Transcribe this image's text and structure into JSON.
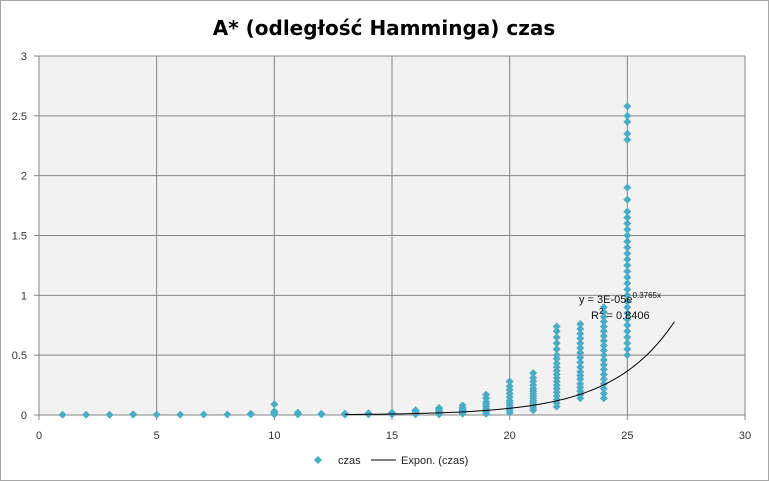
{
  "chart_data": {
    "type": "scatter",
    "title": "A* (odległość Hamminga) czas",
    "xlabel": "",
    "ylabel": "",
    "xlim": [
      0,
      30
    ],
    "ylim": [
      0,
      3
    ],
    "x_ticks": [
      0,
      5,
      10,
      15,
      20,
      25,
      30
    ],
    "y_ticks": [
      0,
      0.5,
      1,
      1.5,
      2,
      2.5,
      3
    ],
    "x_tick_labels": [
      "0",
      "5",
      "10",
      "15",
      "20",
      "25",
      "30"
    ],
    "y_tick_labels": [
      "0",
      "0.5",
      "1",
      "1.5",
      "2",
      "2.5",
      "3"
    ],
    "grid": true,
    "legend_position": "bottom",
    "colors": {
      "marker": "#4bacc6",
      "trendline": "#000000",
      "plot_area": "#f2f2f2",
      "grid": "#868686"
    },
    "series": [
      {
        "name": "czas",
        "points": [
          [
            1,
            0.002
          ],
          [
            2,
            0.002
          ],
          [
            3,
            0.002
          ],
          [
            4,
            0.003
          ],
          [
            4,
            0.006
          ],
          [
            5,
            0.003
          ],
          [
            6,
            0.003
          ],
          [
            7,
            0.004
          ],
          [
            8,
            0.004
          ],
          [
            9,
            0.005
          ],
          [
            9,
            0.01
          ],
          [
            10,
            0.005
          ],
          [
            10,
            0.01
          ],
          [
            10,
            0.02
          ],
          [
            10,
            0.03
          ],
          [
            10,
            0.09
          ],
          [
            11,
            0.005
          ],
          [
            11,
            0.01
          ],
          [
            11,
            0.02
          ],
          [
            12,
            0.005
          ],
          [
            12,
            0.01
          ],
          [
            13,
            0.003
          ],
          [
            13,
            0.008
          ],
          [
            13,
            0.012
          ],
          [
            14,
            0.005
          ],
          [
            14,
            0.01
          ],
          [
            14,
            0.015
          ],
          [
            15,
            0.005
          ],
          [
            15,
            0.01
          ],
          [
            15,
            0.015
          ],
          [
            15,
            0.02
          ],
          [
            16,
            0.005
          ],
          [
            16,
            0.01
          ],
          [
            16,
            0.02
          ],
          [
            16,
            0.03
          ],
          [
            16,
            0.04
          ],
          [
            17,
            0.005
          ],
          [
            17,
            0.015
          ],
          [
            17,
            0.025
          ],
          [
            17,
            0.035
          ],
          [
            17,
            0.05
          ],
          [
            17,
            0.06
          ],
          [
            18,
            0.01
          ],
          [
            18,
            0.02
          ],
          [
            18,
            0.03
          ],
          [
            18,
            0.04
          ],
          [
            18,
            0.05
          ],
          [
            18,
            0.06
          ],
          [
            18,
            0.08
          ],
          [
            19,
            0.01
          ],
          [
            19,
            0.03
          ],
          [
            19,
            0.05
          ],
          [
            19,
            0.07
          ],
          [
            19,
            0.09
          ],
          [
            19,
            0.11
          ],
          [
            19,
            0.14
          ],
          [
            19,
            0.17
          ],
          [
            20,
            0.02
          ],
          [
            20,
            0.04
          ],
          [
            20,
            0.06
          ],
          [
            20,
            0.08
          ],
          [
            20,
            0.1
          ],
          [
            20,
            0.12
          ],
          [
            20,
            0.15
          ],
          [
            20,
            0.18
          ],
          [
            20,
            0.21
          ],
          [
            20,
            0.24
          ],
          [
            20,
            0.28
          ],
          [
            21,
            0.04
          ],
          [
            21,
            0.06
          ],
          [
            21,
            0.08
          ],
          [
            21,
            0.1
          ],
          [
            21,
            0.12
          ],
          [
            21,
            0.14
          ],
          [
            21,
            0.16
          ],
          [
            21,
            0.18
          ],
          [
            21,
            0.2
          ],
          [
            21,
            0.22
          ],
          [
            21,
            0.25
          ],
          [
            21,
            0.28
          ],
          [
            21,
            0.31
          ],
          [
            21,
            0.35
          ],
          [
            22,
            0.07
          ],
          [
            22,
            0.1
          ],
          [
            22,
            0.13
          ],
          [
            22,
            0.16
          ],
          [
            22,
            0.19
          ],
          [
            22,
            0.22
          ],
          [
            22,
            0.25
          ],
          [
            22,
            0.28
          ],
          [
            22,
            0.31
          ],
          [
            22,
            0.34
          ],
          [
            22,
            0.37
          ],
          [
            22,
            0.4
          ],
          [
            22,
            0.43
          ],
          [
            22,
            0.47
          ],
          [
            22,
            0.5
          ],
          [
            22,
            0.55
          ],
          [
            22,
            0.6
          ],
          [
            22,
            0.65
          ],
          [
            22,
            0.7
          ],
          [
            22,
            0.74
          ],
          [
            23,
            0.14
          ],
          [
            23,
            0.17
          ],
          [
            23,
            0.2
          ],
          [
            23,
            0.23
          ],
          [
            23,
            0.26
          ],
          [
            23,
            0.3
          ],
          [
            23,
            0.33
          ],
          [
            23,
            0.36
          ],
          [
            23,
            0.4
          ],
          [
            23,
            0.44
          ],
          [
            23,
            0.48
          ],
          [
            23,
            0.52
          ],
          [
            23,
            0.56
          ],
          [
            23,
            0.6
          ],
          [
            23,
            0.64
          ],
          [
            23,
            0.68
          ],
          [
            23,
            0.72
          ],
          [
            23,
            0.76
          ],
          [
            24,
            0.14
          ],
          [
            24,
            0.18
          ],
          [
            24,
            0.22
          ],
          [
            24,
            0.26
          ],
          [
            24,
            0.3
          ],
          [
            24,
            0.34
          ],
          [
            24,
            0.38
          ],
          [
            24,
            0.42
          ],
          [
            24,
            0.46
          ],
          [
            24,
            0.5
          ],
          [
            24,
            0.54
          ],
          [
            24,
            0.58
          ],
          [
            24,
            0.62
          ],
          [
            24,
            0.66
          ],
          [
            24,
            0.7
          ],
          [
            24,
            0.74
          ],
          [
            24,
            0.78
          ],
          [
            24,
            0.82
          ],
          [
            24,
            0.86
          ],
          [
            24,
            0.9
          ],
          [
            25,
            0.5
          ],
          [
            25,
            0.55
          ],
          [
            25,
            0.6
          ],
          [
            25,
            0.65
          ],
          [
            25,
            0.7
          ],
          [
            25,
            0.75
          ],
          [
            25,
            0.8
          ],
          [
            25,
            0.85
          ],
          [
            25,
            0.9
          ],
          [
            25,
            0.95
          ],
          [
            25,
            1.0
          ],
          [
            25,
            1.05
          ],
          [
            25,
            1.1
          ],
          [
            25,
            1.15
          ],
          [
            25,
            1.2
          ],
          [
            25,
            1.25
          ],
          [
            25,
            1.3
          ],
          [
            25,
            1.35
          ],
          [
            25,
            1.4
          ],
          [
            25,
            1.45
          ],
          [
            25,
            1.5
          ],
          [
            25,
            1.55
          ],
          [
            25,
            1.6
          ],
          [
            25,
            1.65
          ],
          [
            25,
            1.7
          ],
          [
            25,
            1.8
          ],
          [
            25,
            1.9
          ],
          [
            25,
            2.3
          ],
          [
            25,
            2.35
          ],
          [
            25,
            2.45
          ],
          [
            25,
            2.5
          ],
          [
            25,
            2.58
          ]
        ]
      },
      {
        "name": "Expon. (czas)",
        "type": "trendline",
        "model": "exponential",
        "a": 3e-05,
        "b": 0.3765,
        "x_range": [
          13,
          27
        ],
        "equation": "y = 3E-05e",
        "equation_exponent": "0.3765x",
        "r_squared_label": "R",
        "r_squared_exp": "2",
        "r_squared_value": " = 0.8406"
      }
    ]
  }
}
